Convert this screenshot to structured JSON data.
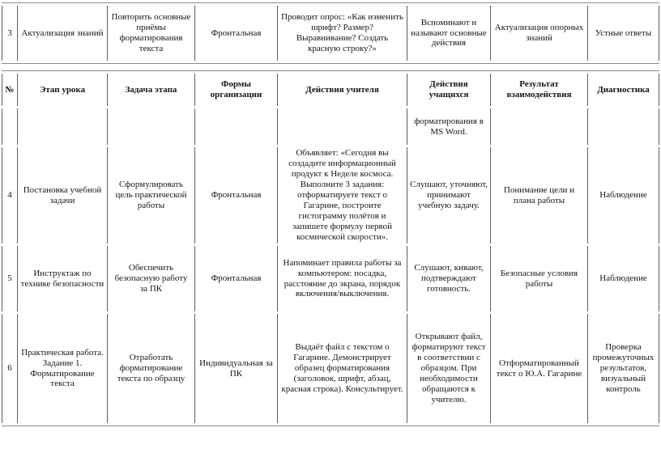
{
  "colors": {
    "background": "#ffffff",
    "text": "#161616",
    "border_vertical": "#5f5f5f",
    "border_horizontal": "#8a8a8a"
  },
  "fragment_table": {
    "rows": [
      {
        "cells": [
          "3",
          "Актуализация знаний",
          "Повторить основные приёмы форматирования текста",
          "Фронтальная",
          "Проводит опрос: «Как изменить шрифт? Размер? Выравнивание? Создать красную строку?»",
          "Вспоминают и называют основные действия",
          "Актуализация опорных знаний",
          "Устные ответы"
        ]
      }
    ]
  },
  "main_table": {
    "headers": [
      "№",
      "Этап урока",
      "Задача этапа",
      "Формы организации",
      "Действия учителя",
      "Действия учащихся",
      "Результат взаимодействия",
      "Диагностика"
    ],
    "rows": [
      {
        "cells": [
          "",
          "",
          "",
          "",
          "",
          "форматирования в MS Word.",
          "",
          ""
        ]
      },
      {
        "cells": [
          "4",
          "Постановка учебной задачи",
          "Сформулировать цель практической работы",
          "Фронтальная",
          "Объявляет: «Сегодня вы создадите информационный продукт к Неделе космоса. Выполните 3 задания: отформатируете текст о Гагарине, построите гистограмму полётов и запишете формулу первой космической скорости».",
          "Слушают, уточняют, принимают учебную задачу.",
          "Понимание цели и плана работы",
          "Наблюдение"
        ]
      },
      {
        "cells": [
          "5",
          "Инструктаж по технике безопасности",
          "Обеспечить безопасную работу за ПК",
          "Фронтальная",
          "Напоминает правила работы за компьютером: посадка, расстояние до экрана, порядок включения/выключения.",
          "Слушают, кивают, подтверждают готовность.",
          "Безопасные условия работы",
          "Наблюдение"
        ]
      },
      {
        "cells": [
          "6",
          "Практическая работа. Задание 1. Форматирование текста",
          "Отработать форматирование текста по образцу",
          "Индивидуальная за ПК",
          "Выдаёт файл с текстом о Гагарине. Демонстрирует образец форматирования (заголовок, шрифт, абзац, красная строка). Консультирует.",
          "Открывают файл, форматируют текст в соответствии с образцом. При необходимости обращаются к учителю.",
          "Отформатированный текст о Ю.А. Гагарине",
          "Проверка промежуточных результатов, визуальный контроль"
        ]
      }
    ]
  }
}
